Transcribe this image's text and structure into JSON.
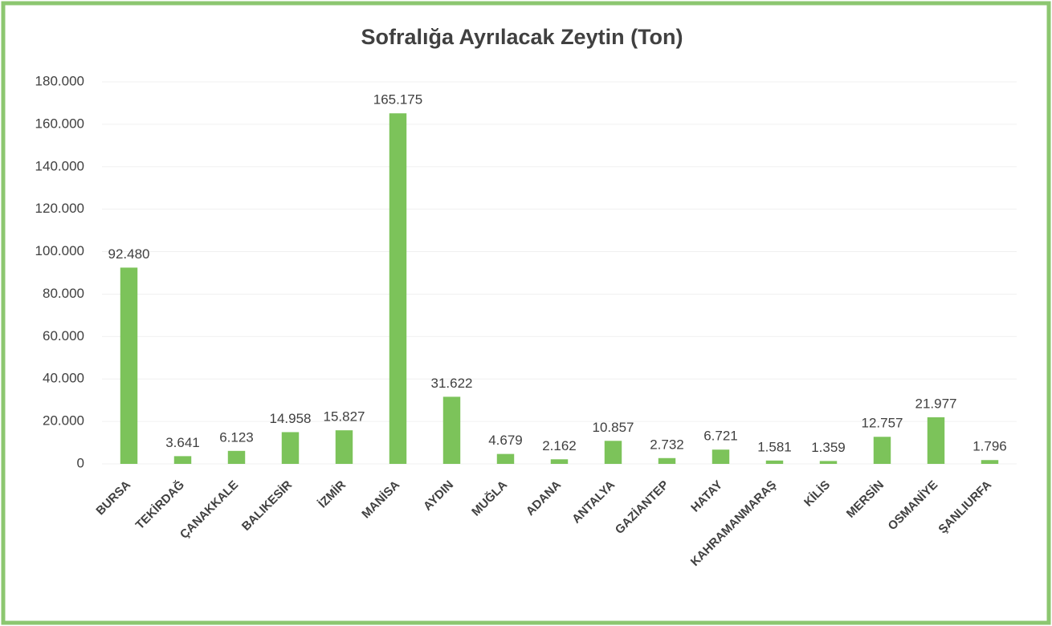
{
  "chart_data": {
    "type": "bar",
    "title": "Sofralığa Ayrılacak Zeytin (Ton)",
    "categories": [
      "BURSA",
      "TEKİRDAĞ",
      "ÇANAKKALE",
      "BALIKESİR",
      "İZMİR",
      "MANİSA",
      "AYDIN",
      "MUĞLA",
      "ADANA",
      "ANTALYA",
      "GAZİANTEP",
      "HATAY",
      "KAHRAMANMARAŞ",
      "KİLİS",
      "MERSİN",
      "OSMANİYE",
      "ŞANLIURFA"
    ],
    "values": [
      92480,
      3641,
      6123,
      14958,
      15827,
      165175,
      31622,
      4679,
      2162,
      10857,
      2732,
      6721,
      1581,
      1359,
      12757,
      21977,
      1796
    ],
    "value_labels": [
      "92.480",
      "3.641",
      "6.123",
      "14.958",
      "15.827",
      "165.175",
      "31.622",
      "4.679",
      "2.162",
      "10.857",
      "2.732",
      "6.721",
      "1.581",
      "1.359",
      "12.757",
      "21.977",
      "1.796"
    ],
    "color": "#7cc35a",
    "ylim": [
      0,
      180000
    ],
    "yticks": [
      0,
      {
        "value": 20000,
        "label": "20.000"
      },
      {
        "value": 40000,
        "label": "40.000"
      },
      {
        "value": 60000,
        "label": "60.000"
      },
      {
        "value": 80000,
        "label": "80.000"
      },
      {
        "value": 100000,
        "label": "100.000"
      },
      {
        "value": 120000,
        "label": "120.000"
      },
      {
        "value": 140000,
        "label": "140.000"
      },
      {
        "value": 160000,
        "label": "160.000"
      },
      {
        "value": 180000,
        "label": "180.000"
      }
    ],
    "grid": true
  }
}
